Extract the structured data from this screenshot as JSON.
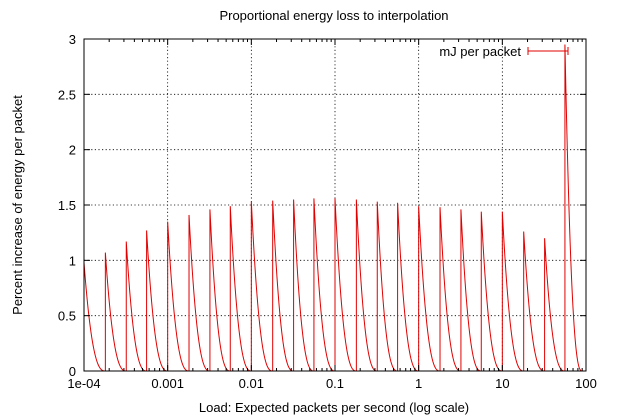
{
  "chart_data": {
    "type": "line",
    "title": "Proportional energy loss to interpolation",
    "xlabel": "Load:  Expected packets per second (log scale)",
    "ylabel": "Percent increase of energy per packet",
    "x_scale": "log",
    "xlim": [
      0.0001,
      100
    ],
    "ylim": [
      0,
      3
    ],
    "x_ticks": [
      {
        "value": 0.0001,
        "label": "1e-04"
      },
      {
        "value": 0.001,
        "label": "0.001"
      },
      {
        "value": 0.01,
        "label": "0.01"
      },
      {
        "value": 0.1,
        "label": "0.1"
      },
      {
        "value": 1,
        "label": "1"
      },
      {
        "value": 10,
        "label": "10"
      },
      {
        "value": 100,
        "label": "100"
      }
    ],
    "y_ticks": [
      {
        "value": 0,
        "label": "0"
      },
      {
        "value": 0.5,
        "label": "0.5"
      },
      {
        "value": 1,
        "label": "1"
      },
      {
        "value": 1.5,
        "label": "1.5"
      },
      {
        "value": 2,
        "label": "2"
      },
      {
        "value": 2.5,
        "label": "2.5"
      },
      {
        "value": 3,
        "label": "3"
      }
    ],
    "grid": true,
    "legend_position": "top-right",
    "series": [
      {
        "name": "mJ per packet",
        "color": "#e00000",
        "shape": "sawtooth decaying from each peak to 0 just before the next peak",
        "peaks": [
          {
            "x": 0.0001,
            "y": 0.98
          },
          {
            "x": 0.00018,
            "y": 1.07
          },
          {
            "x": 0.00032,
            "y": 1.17
          },
          {
            "x": 0.00056,
            "y": 1.27
          },
          {
            "x": 0.001,
            "y": 1.35
          },
          {
            "x": 0.0018,
            "y": 1.41
          },
          {
            "x": 0.0032,
            "y": 1.46
          },
          {
            "x": 0.0056,
            "y": 1.49
          },
          {
            "x": 0.01,
            "y": 1.53
          },
          {
            "x": 0.018,
            "y": 1.54
          },
          {
            "x": 0.032,
            "y": 1.55
          },
          {
            "x": 0.056,
            "y": 1.56
          },
          {
            "x": 0.1,
            "y": 1.56
          },
          {
            "x": 0.18,
            "y": 1.55
          },
          {
            "x": 0.32,
            "y": 1.53
          },
          {
            "x": 0.56,
            "y": 1.52
          },
          {
            "x": 1,
            "y": 1.49
          },
          {
            "x": 1.8,
            "y": 1.48
          },
          {
            "x": 3.2,
            "y": 1.46
          },
          {
            "x": 5.6,
            "y": 1.44
          },
          {
            "x": 10,
            "y": 1.44
          },
          {
            "x": 18,
            "y": 1.26
          },
          {
            "x": 32,
            "y": 1.2
          },
          {
            "x": 56,
            "y": 2.95
          }
        ],
        "end_x": 90
      }
    ]
  }
}
